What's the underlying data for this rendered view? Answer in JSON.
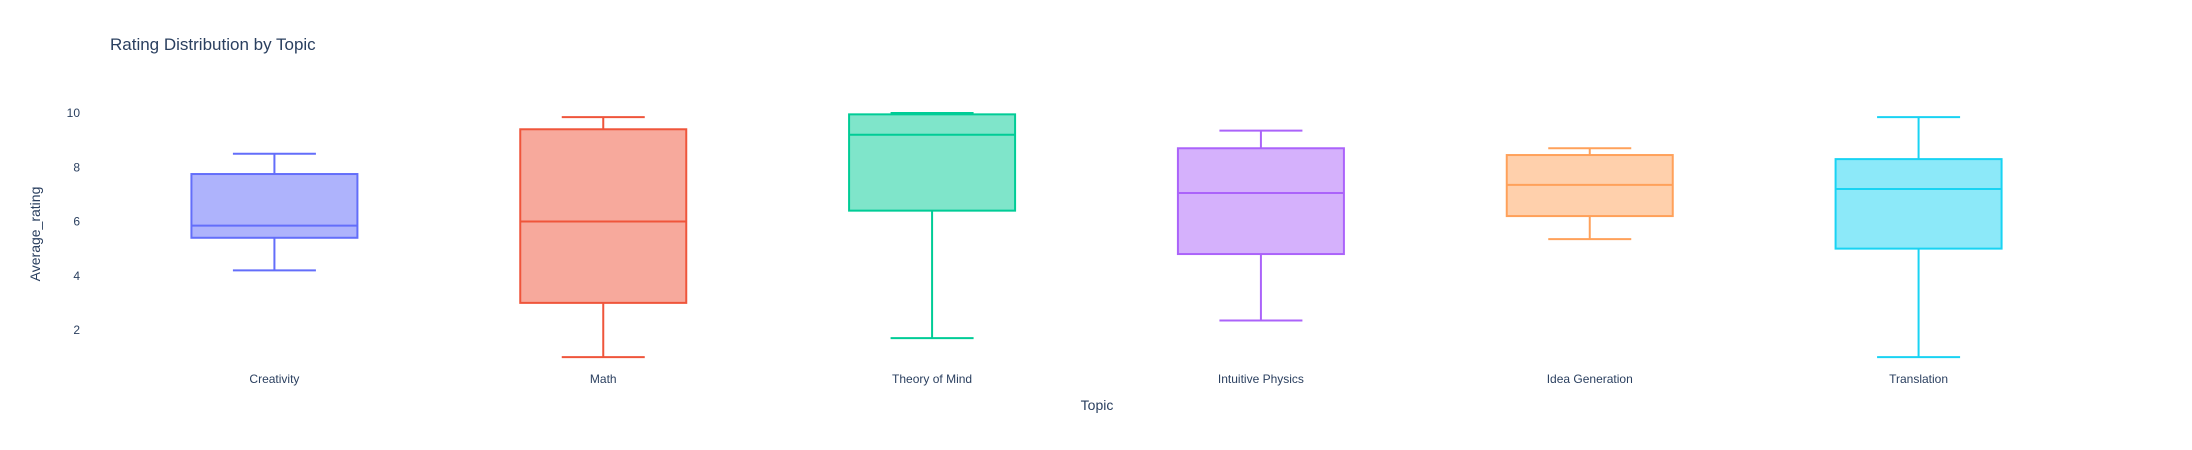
{
  "chart_data": {
    "type": "box",
    "title": "Rating Distribution by Topic",
    "xlabel": "Topic",
    "ylabel": "Average_rating",
    "ylim": [
      0.8,
      10.4
    ],
    "yticks": [
      2,
      4,
      6,
      8,
      10
    ],
    "grid": false,
    "categories": [
      "Creativity",
      "Math",
      "Theory of Mind",
      "Intuitive Physics",
      "Idea Generation",
      "Translation"
    ],
    "series": [
      {
        "category": "Creativity",
        "min": 4.2,
        "q1": 5.4,
        "median": 5.85,
        "q3": 7.75,
        "max": 8.5,
        "color": "#636efa",
        "fill": "#aeb3fc"
      },
      {
        "category": "Math",
        "min": 1.0,
        "q1": 3.0,
        "median": 6.0,
        "q3": 9.4,
        "max": 9.85,
        "color": "#ef553b",
        "fill": "#f7a99c"
      },
      {
        "category": "Theory of Mind",
        "min": 1.7,
        "q1": 6.4,
        "median": 9.2,
        "q3": 9.95,
        "max": 10.0,
        "color": "#00cc96",
        "fill": "#7fe5ca"
      },
      {
        "category": "Intuitive Physics",
        "min": 2.35,
        "q1": 4.8,
        "median": 7.05,
        "q3": 8.7,
        "max": 9.35,
        "color": "#ab63fa",
        "fill": "#d5b1fc"
      },
      {
        "category": "Idea Generation",
        "min": 5.35,
        "q1": 6.2,
        "median": 7.35,
        "q3": 8.45,
        "max": 8.7,
        "color": "#ffa15a",
        "fill": "#ffd0ac"
      },
      {
        "category": "Translation",
        "min": 1.0,
        "q1": 5.0,
        "median": 7.2,
        "q3": 8.3,
        "max": 9.85,
        "color": "#19d3f3",
        "fill": "#8ce9f9"
      }
    ]
  }
}
